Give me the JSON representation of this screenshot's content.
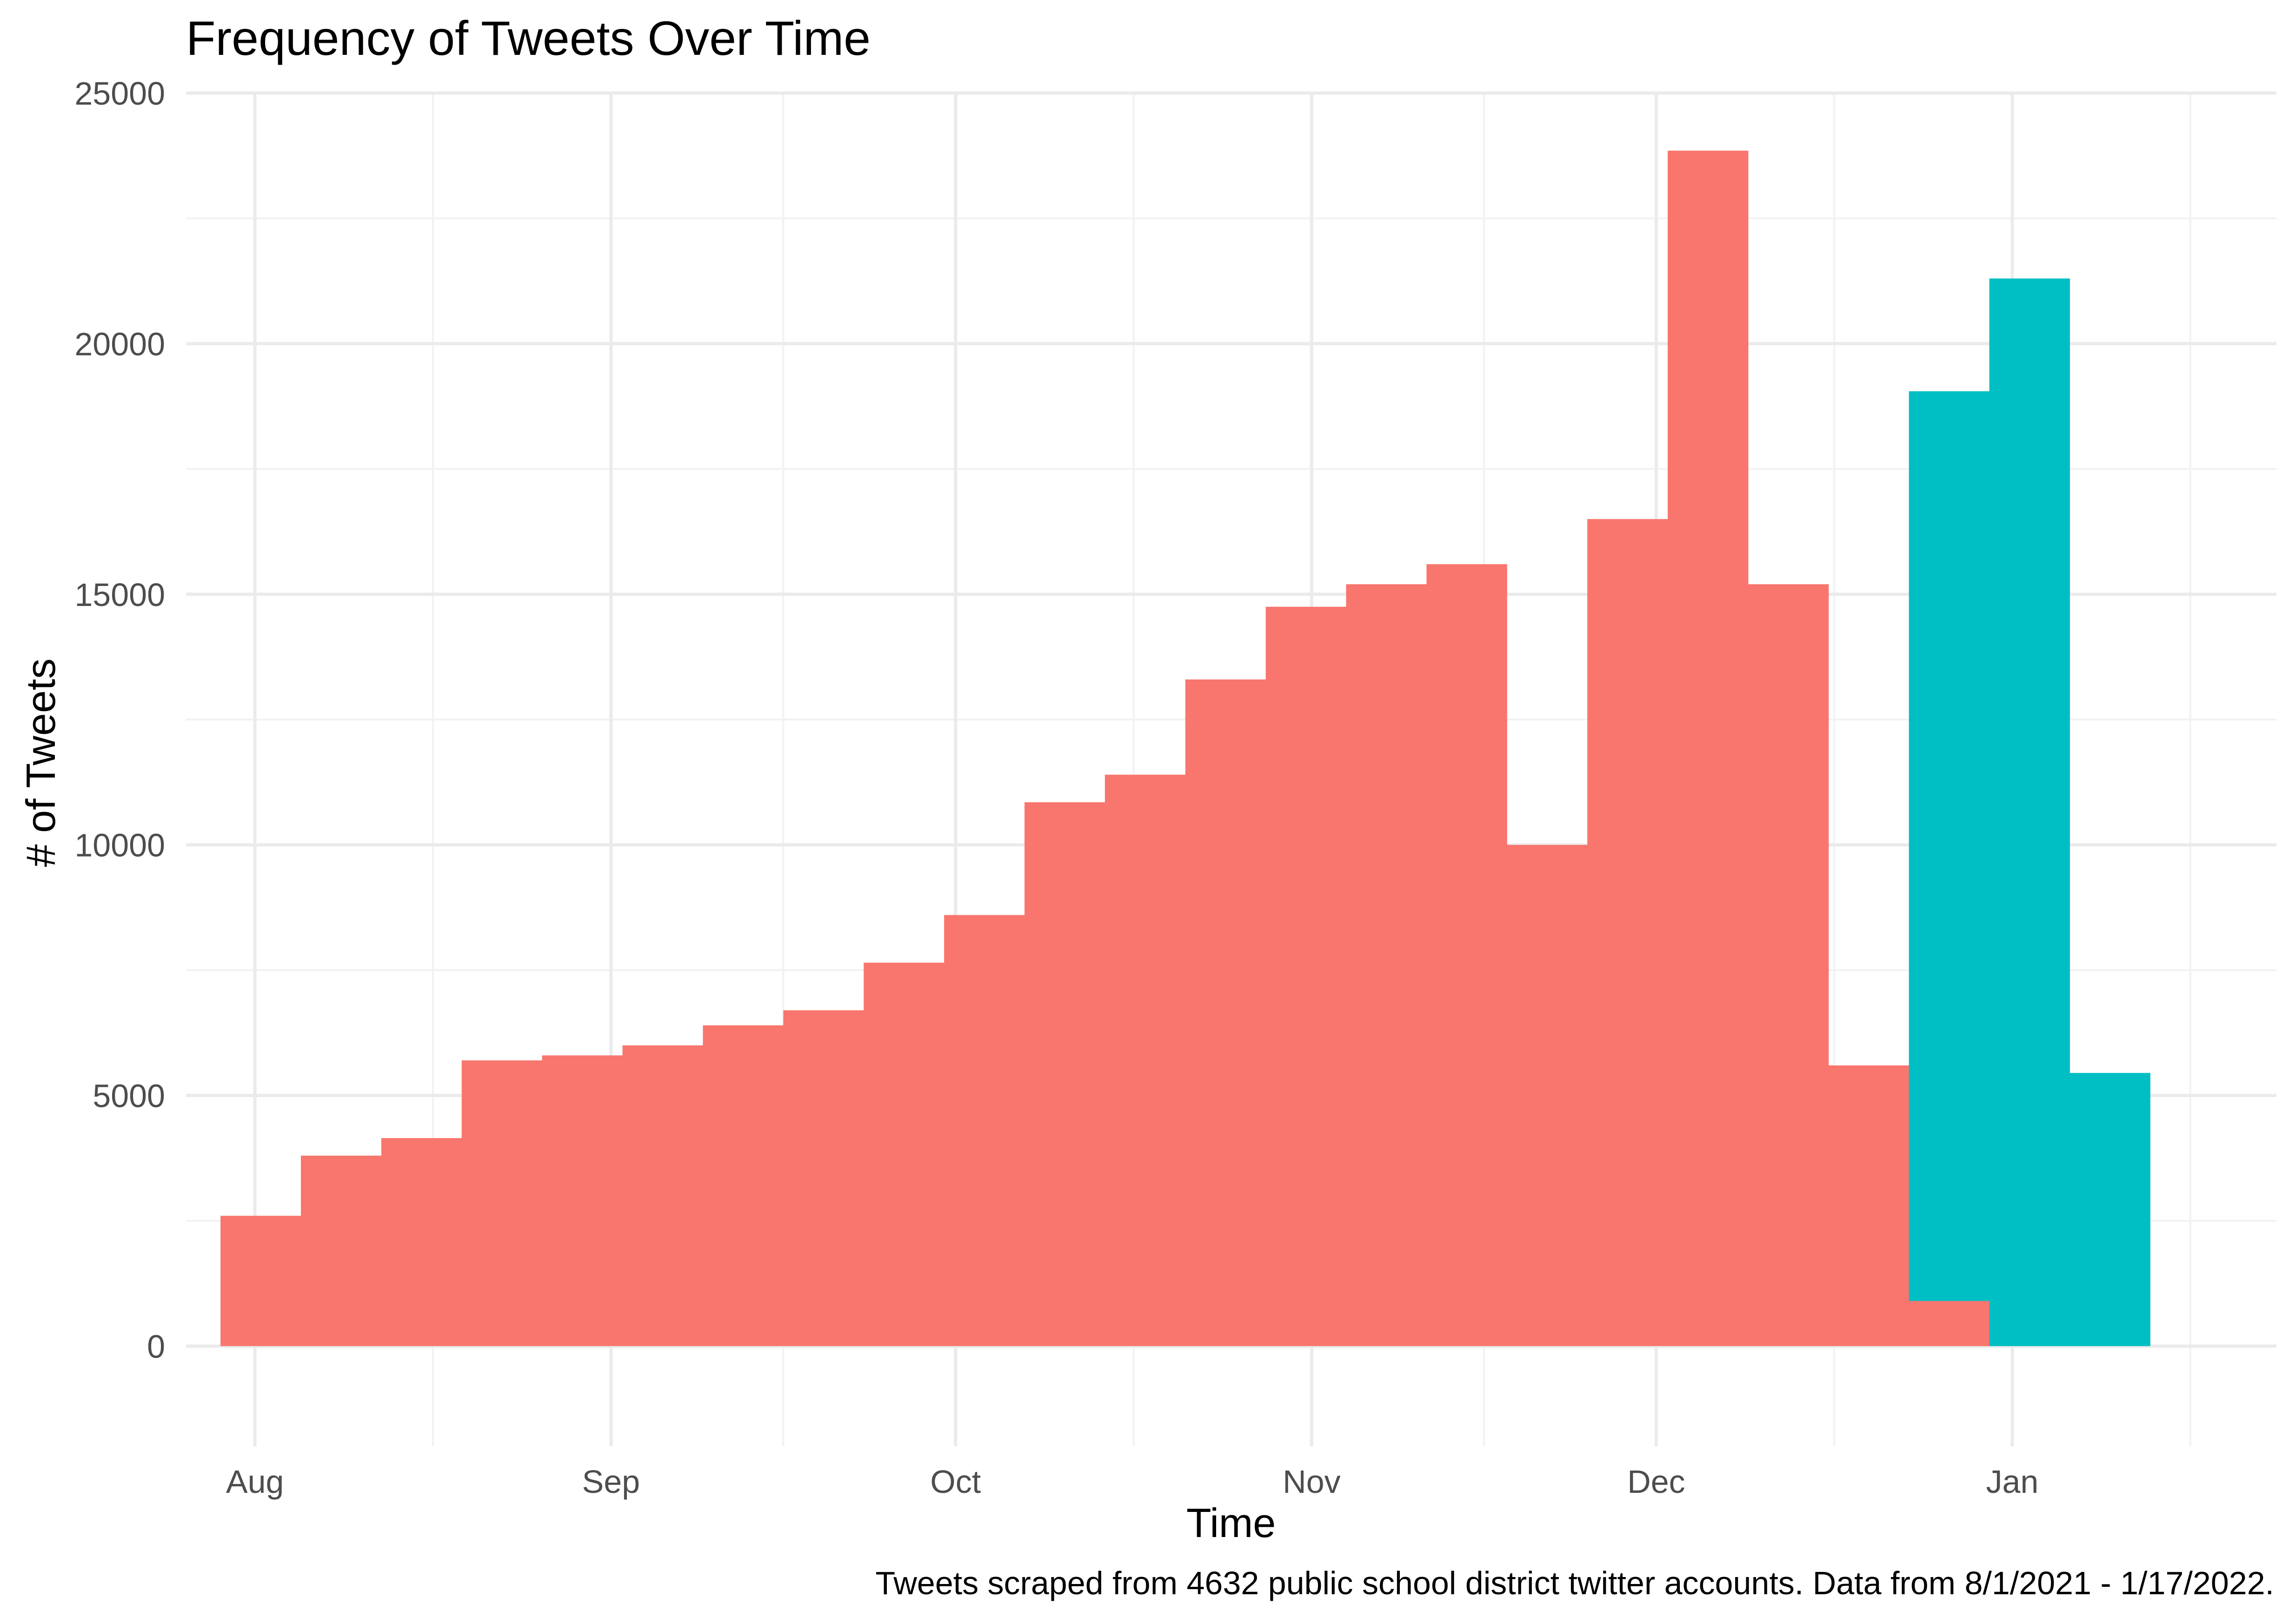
{
  "chart_data": {
    "type": "bar",
    "subtype": "stacked histogram",
    "title": "Frequency of Tweets Over Time",
    "xlabel": "Time",
    "ylabel": "# of Tweets",
    "caption": "Tweets scraped from 4632 public school district twitter accounts. Data from 8/1/2021 - 1/17/2022.",
    "ylim": [
      -2000,
      25000
    ],
    "xlim": [
      "2021-07-26",
      "2022-01-24"
    ],
    "y_ticks": [
      0,
      5000,
      10000,
      15000,
      20000,
      25000
    ],
    "y_tick_labels": [
      "0",
      "5000",
      "10000",
      "15000",
      "20000",
      "25000"
    ],
    "x_ticks": [
      "2021-08-01",
      "2021-09-01",
      "2021-10-01",
      "2021-11-01",
      "2021-12-01",
      "2022-01-01"
    ],
    "x_tick_labels": [
      "Aug",
      "Sep",
      "Oct",
      "Nov",
      "Dec",
      "Jan"
    ],
    "grid": true,
    "legend": "none",
    "bins": [
      {
        "start": "2021-07-29",
        "end": "2021-08-05"
      },
      {
        "start": "2021-08-05",
        "end": "2021-08-12"
      },
      {
        "start": "2021-08-12",
        "end": "2021-08-19"
      },
      {
        "start": "2021-08-19",
        "end": "2021-08-26"
      },
      {
        "start": "2021-08-26",
        "end": "2021-09-02"
      },
      {
        "start": "2021-09-02",
        "end": "2021-09-09"
      },
      {
        "start": "2021-09-09",
        "end": "2021-09-16"
      },
      {
        "start": "2021-09-16",
        "end": "2021-09-23"
      },
      {
        "start": "2021-09-23",
        "end": "2021-09-30"
      },
      {
        "start": "2021-09-30",
        "end": "2021-10-07"
      },
      {
        "start": "2021-10-07",
        "end": "2021-10-14"
      },
      {
        "start": "2021-10-14",
        "end": "2021-10-21"
      },
      {
        "start": "2021-10-21",
        "end": "2021-10-28"
      },
      {
        "start": "2021-10-28",
        "end": "2021-11-04"
      },
      {
        "start": "2021-11-04",
        "end": "2021-11-11"
      },
      {
        "start": "2021-11-11",
        "end": "2021-11-18"
      },
      {
        "start": "2021-11-18",
        "end": "2021-11-25"
      },
      {
        "start": "2021-11-25",
        "end": "2021-12-02"
      },
      {
        "start": "2021-12-02",
        "end": "2021-12-09"
      },
      {
        "start": "2021-12-09",
        "end": "2021-12-16"
      },
      {
        "start": "2021-12-16",
        "end": "2021-12-23"
      },
      {
        "start": "2021-12-23",
        "end": "2021-12-30"
      },
      {
        "start": "2021-12-30",
        "end": "2022-01-06"
      },
      {
        "start": "2022-01-06",
        "end": "2022-01-13"
      },
      {
        "start": "2022-01-13",
        "end": "2022-01-20"
      }
    ],
    "series": [
      {
        "color": "#f8766d",
        "values": [
          2600,
          3800,
          4150,
          5700,
          5800,
          6000,
          6400,
          6700,
          7650,
          8600,
          10850,
          11400,
          13300,
          14750,
          15200,
          15600,
          10000,
          16500,
          23850,
          15200,
          5600,
          900,
          0,
          0,
          0
        ]
      },
      {
        "color": "#00bfc4",
        "values": [
          0,
          0,
          0,
          0,
          0,
          0,
          0,
          0,
          0,
          0,
          0,
          0,
          0,
          0,
          0,
          0,
          0,
          0,
          0,
          0,
          0,
          18150,
          21300,
          5450,
          0
        ]
      }
    ]
  }
}
